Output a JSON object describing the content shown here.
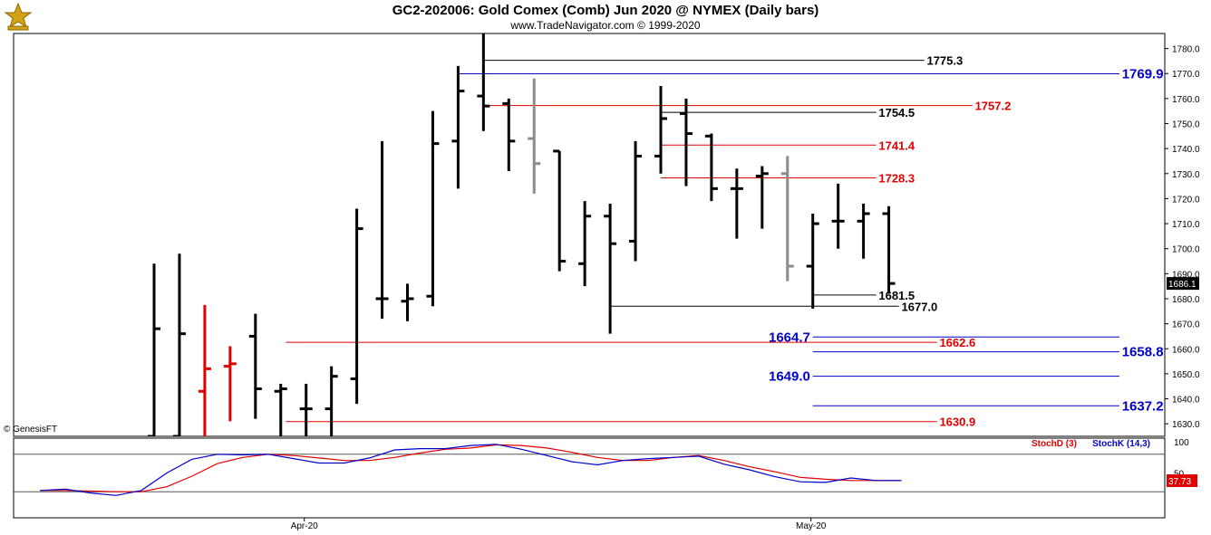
{
  "header": {
    "title": "GC2-202006:  Gold Comex (Comb) Jun 2020 @ NYMEX  (Daily bars)",
    "subtitle": "www.TradeNavigator.com © 1999-2020",
    "credit": "© GenesisFT"
  },
  "colors": {
    "black": "#000000",
    "red": "#e00000",
    "blue": "#0000cc",
    "gray": "#8c8c8c"
  },
  "chart_data": [
    {
      "type": "ohlc",
      "title": "GC2-202006:  Gold Comex (Comb) Jun 2020 @ NYMEX  (Daily bars)",
      "ylim": [
        1625,
        1786
      ],
      "x_ticks": [
        {
          "label": "Apr-20",
          "index": 6
        },
        {
          "label": "May-20",
          "index": 26
        }
      ],
      "y_ticks": [
        "1630.0",
        "1640.0",
        "1650.0",
        "1660.0",
        "1670.0",
        "1680.0",
        "1690.0",
        "1700.0",
        "1710.0",
        "1720.0",
        "1730.0",
        "1740.0",
        "1750.0",
        "1760.0",
        "1770.0",
        "1780.0"
      ],
      "last_price": "1686.1",
      "bars": [
        {
          "o": 1625.0,
          "h": 1694.0,
          "l": 1625.0,
          "c": 1668.0,
          "color": "black"
        },
        {
          "o": 1625.0,
          "h": 1698.0,
          "l": 1625.0,
          "c": 1666.0,
          "color": "black"
        },
        {
          "o": 1643.0,
          "h": 1677.5,
          "l": 1625.0,
          "c": 1652.0,
          "color": "red"
        },
        {
          "o": 1653.0,
          "h": 1661.0,
          "l": 1631.0,
          "c": 1654.0,
          "color": "red"
        },
        {
          "o": 1665.0,
          "h": 1674.0,
          "l": 1632.0,
          "c": 1644.0,
          "color": "black"
        },
        {
          "o": 1643.0,
          "h": 1646.0,
          "l": 1625.0,
          "c": 1644.0,
          "color": "black"
        },
        {
          "o": 1636.0,
          "h": 1646.0,
          "l": 1625.0,
          "c": 1636.0,
          "color": "black"
        },
        {
          "o": 1636.0,
          "h": 1653.0,
          "l": 1625.0,
          "c": 1649.0,
          "color": "black"
        },
        {
          "o": 1648.0,
          "h": 1716.0,
          "l": 1638.0,
          "c": 1708.0,
          "color": "black"
        },
        {
          "o": 1680.0,
          "h": 1743.0,
          "l": 1672.0,
          "c": 1680.0,
          "color": "black"
        },
        {
          "o": 1679.0,
          "h": 1686.0,
          "l": 1671.0,
          "c": 1680.0,
          "color": "black"
        },
        {
          "o": 1681.0,
          "h": 1755.0,
          "l": 1677.0,
          "c": 1742.0,
          "color": "black"
        },
        {
          "o": 1743.0,
          "h": 1773.0,
          "l": 1724.0,
          "c": 1763.0,
          "color": "black"
        },
        {
          "o": 1761.0,
          "h": 1786.0,
          "l": 1747.0,
          "c": 1757.0,
          "color": "black"
        },
        {
          "o": 1758.0,
          "h": 1760.0,
          "l": 1731.0,
          "c": 1743.0,
          "color": "black"
        },
        {
          "o": 1744.0,
          "h": 1768.0,
          "l": 1722.0,
          "c": 1734.0,
          "color": "gray"
        },
        {
          "o": 1739.0,
          "h": 1739.0,
          "l": 1691.0,
          "c": 1695.0,
          "color": "black"
        },
        {
          "o": 1694.0,
          "h": 1719.0,
          "l": 1685.0,
          "c": 1713.0,
          "color": "black"
        },
        {
          "o": 1713.0,
          "h": 1718.0,
          "l": 1666.0,
          "c": 1702.0,
          "color": "black"
        },
        {
          "o": 1703.0,
          "h": 1743.0,
          "l": 1695.0,
          "c": 1737.0,
          "color": "black"
        },
        {
          "o": 1737.0,
          "h": 1765.0,
          "l": 1730.0,
          "c": 1752.0,
          "color": "black"
        },
        {
          "o": 1754.0,
          "h": 1760.0,
          "l": 1725.0,
          "c": 1746.0,
          "color": "black"
        },
        {
          "o": 1745.0,
          "h": 1746.0,
          "l": 1719.0,
          "c": 1724.0,
          "color": "black"
        },
        {
          "o": 1724.0,
          "h": 1732.0,
          "l": 1704.0,
          "c": 1724.0,
          "color": "black"
        },
        {
          "o": 1729.0,
          "h": 1733.0,
          "l": 1708.0,
          "c": 1730.0,
          "color": "black"
        },
        {
          "o": 1730.0,
          "h": 1737.0,
          "l": 1687.0,
          "c": 1693.0,
          "color": "gray"
        },
        {
          "o": 1693.0,
          "h": 1714.0,
          "l": 1676.0,
          "c": 1710.0,
          "color": "black"
        },
        {
          "o": 1711.0,
          "h": 1726.0,
          "l": 1700.0,
          "c": 1711.0,
          "color": "black"
        },
        {
          "o": 1711.0,
          "h": 1718.0,
          "l": 1696.0,
          "c": 1714.0,
          "color": "black"
        },
        {
          "o": 1714.0,
          "h": 1717.0,
          "l": 1682.0,
          "c": 1686.1,
          "color": "black"
        }
      ],
      "levels": [
        {
          "value": 1775.3,
          "label": "1775.3",
          "color": "black",
          "from": 13,
          "to": 30.4,
          "label_at": 30.5,
          "bold": true,
          "big": false
        },
        {
          "value": 1769.9,
          "label": "1769.9",
          "color": "blue",
          "from": 12,
          "to": 38.1,
          "label_at": 38.2,
          "bold": true,
          "big": true
        },
        {
          "value": 1757.2,
          "label": "1757.2",
          "color": "red",
          "from": 13,
          "to": 32.3,
          "label_at": 32.4,
          "bold": true,
          "big": false
        },
        {
          "value": 1754.5,
          "label": "1754.5",
          "color": "black",
          "from": 20,
          "to": 28.5,
          "label_at": 28.6,
          "bold": true,
          "big": false
        },
        {
          "value": 1741.4,
          "label": "1741.4",
          "color": "red",
          "from": 20,
          "to": 28.5,
          "label_at": 28.6,
          "bold": true,
          "big": false
        },
        {
          "value": 1728.3,
          "label": "1728.3",
          "color": "red",
          "from": 20,
          "to": 28.5,
          "label_at": 28.6,
          "bold": true,
          "big": false
        },
        {
          "value": 1681.5,
          "label": "1681.5",
          "color": "black",
          "from": 26,
          "to": 28.5,
          "label_at": 28.6,
          "bold": true,
          "big": false
        },
        {
          "value": 1677.0,
          "label": "1677.0",
          "color": "black",
          "from": 18,
          "to": 29.4,
          "label_at": 29.5,
          "bold": true,
          "big": false
        },
        {
          "value": 1664.7,
          "label": "1664.7",
          "color": "blue",
          "from": 26,
          "to": 38.1,
          "label_at": 25.9,
          "label_side": "left",
          "bold": true,
          "big": true
        },
        {
          "value": 1662.6,
          "label": "1662.6",
          "color": "red",
          "from": 5.2,
          "to": 30.9,
          "label_at": 31.0,
          "bold": true,
          "big": false
        },
        {
          "value": 1658.8,
          "label": "1658.8",
          "color": "blue",
          "from": 26,
          "to": 38.1,
          "label_at": 38.2,
          "bold": true,
          "big": true
        },
        {
          "value": 1649.0,
          "label": "1649.0",
          "color": "blue",
          "from": 26,
          "to": 38.1,
          "label_at": 25.9,
          "label_side": "left",
          "bold": true,
          "big": true
        },
        {
          "value": 1637.2,
          "label": "1637.2",
          "color": "blue",
          "from": 26,
          "to": 38.1,
          "label_at": 38.2,
          "bold": true,
          "big": true
        },
        {
          "value": 1630.9,
          "label": "1630.9",
          "color": "red",
          "from": 5.2,
          "to": 30.9,
          "label_at": 31.0,
          "bold": true,
          "big": false
        }
      ]
    },
    {
      "type": "line",
      "ylim": [
        0,
        100
      ],
      "y_ticks": [
        "100",
        "50"
      ],
      "reference_lines": [
        80,
        20
      ],
      "last_value": "37.73",
      "series": [
        {
          "name": "StochD (3)",
          "color": "red",
          "x": [
            -4.5,
            -3.5,
            -2.5,
            -1.5,
            -0.5,
            0.5,
            1.5,
            2.5,
            3.5,
            4.5,
            5.5,
            6.5,
            7.5,
            8.5,
            9.5,
            10.5,
            11.5,
            12.5,
            13.5,
            14.5,
            15.5,
            16.5,
            17.5,
            18.5,
            19.5,
            20.5,
            21.5,
            22.5,
            23.5,
            24.5,
            25.5,
            26.5,
            27.5,
            28.5,
            29.5
          ],
          "values": [
            22,
            22,
            21,
            20,
            20,
            28,
            45,
            65,
            75,
            80,
            78,
            74,
            70,
            70,
            75,
            82,
            88,
            90,
            95,
            94,
            90,
            83,
            75,
            70,
            70,
            75,
            78,
            70,
            60,
            52,
            43,
            40,
            38,
            38,
            38
          ]
        },
        {
          "name": "StochK (14,3)",
          "color": "blue",
          "x": [
            -4.5,
            -3.5,
            -2.5,
            -1.5,
            -0.5,
            0.5,
            1.5,
            2.5,
            3.5,
            4.5,
            5.5,
            6.5,
            7.5,
            8.5,
            9.5,
            10.5,
            11.5,
            12.5,
            13.5,
            14.5,
            15.5,
            16.5,
            17.5,
            18.5,
            19.5,
            20.5,
            21.5,
            22.5,
            23.5,
            24.5,
            25.5,
            26.5,
            27.5,
            28.5,
            29.5
          ],
          "values": [
            22,
            24,
            18,
            14,
            22,
            50,
            72,
            80,
            79,
            80,
            73,
            66,
            66,
            74,
            87,
            89,
            89,
            94,
            96,
            88,
            78,
            68,
            63,
            70,
            73,
            75,
            77,
            64,
            55,
            44,
            36,
            35,
            42,
            38,
            38
          ]
        }
      ]
    }
  ]
}
